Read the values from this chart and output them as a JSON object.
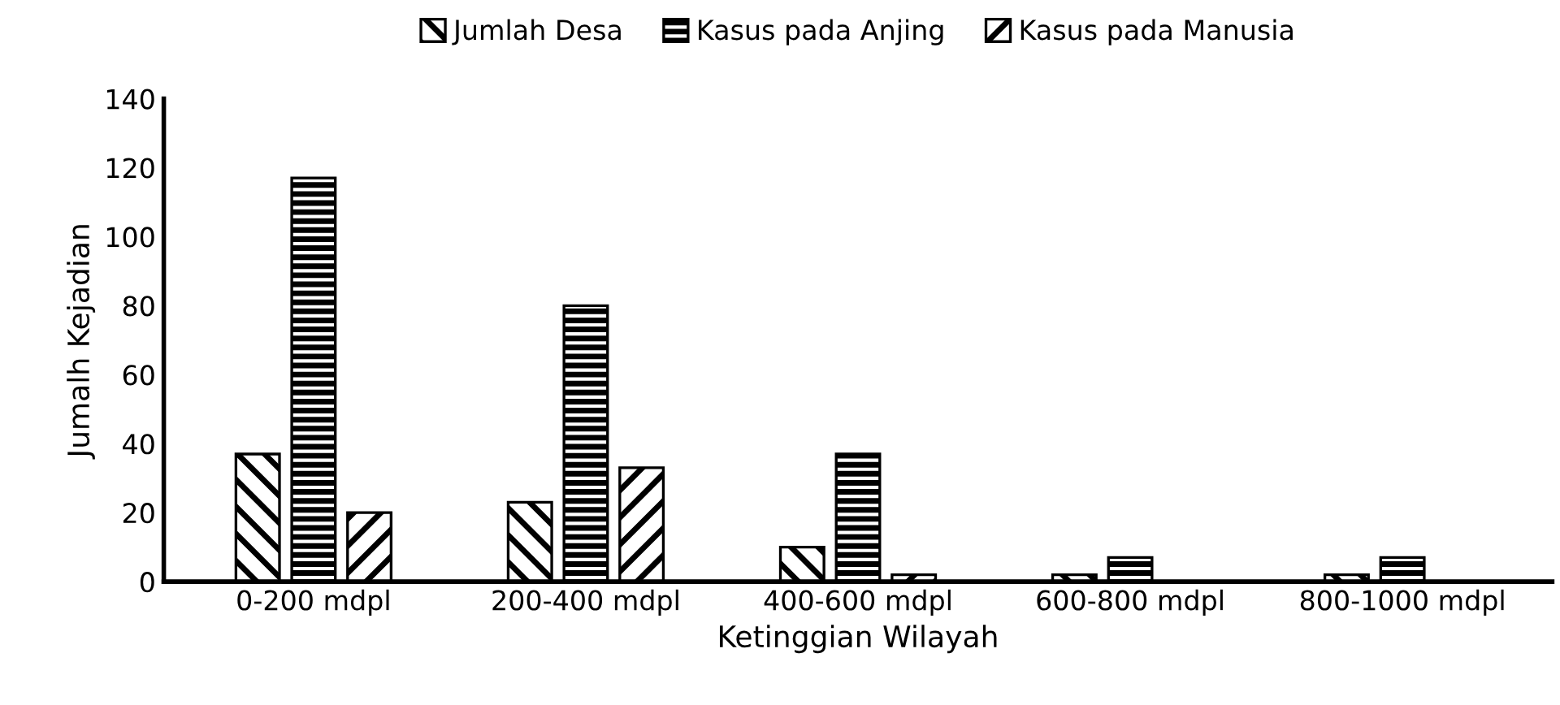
{
  "chart_data": {
    "type": "bar",
    "xlabel": "Ketinggian Wilayah",
    "ylabel": "Jumalh Kejadian",
    "categories": [
      "0-200 mdpl",
      "200-400 mdpl",
      "400-600 mdpl",
      "600-800 mdpl",
      "800-1000 mdpl"
    ],
    "series": [
      {
        "name": "Jumlah Desa",
        "color": "#000000",
        "values": [
          37,
          23,
          10,
          2,
          2
        ]
      },
      {
        "name": "Kasus pada Anjing",
        "color": "#000000",
        "values": [
          117,
          80,
          37,
          7,
          7
        ]
      },
      {
        "name": "Kasus pada Manusia",
        "color": "#000000",
        "values": [
          20,
          33,
          2,
          0,
          0
        ]
      }
    ],
    "ylim": [
      0,
      140
    ],
    "yticks": [
      0,
      20,
      40,
      60,
      80,
      100,
      120,
      140
    ],
    "grid": false,
    "legend": "top"
  }
}
